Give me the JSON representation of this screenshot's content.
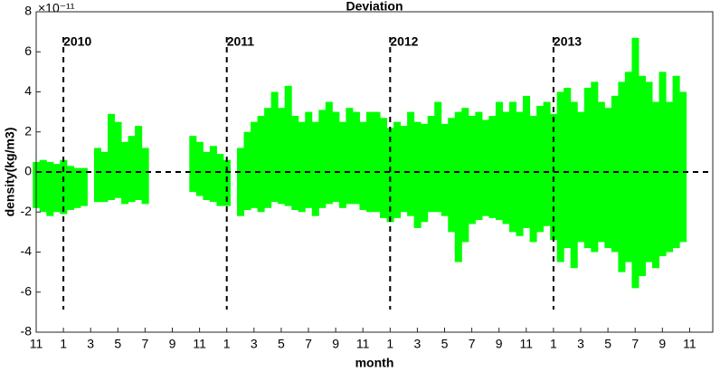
{
  "chart_data": {
    "type": "range",
    "title": "Deviation",
    "xlabel": "month",
    "ylabel": "density(kg/m3)",
    "y_multiplier": "×10⁻¹¹",
    "color": "#00ff00",
    "grid": false,
    "hline": 0,
    "xlim": [
      0,
      49.7
    ],
    "ylim": [
      -8,
      8
    ],
    "yticks": [
      -8,
      -6,
      -4,
      -2,
      0,
      2,
      4,
      6,
      8
    ],
    "xticks": [
      {
        "value": 0,
        "label": "11"
      },
      {
        "value": 2,
        "label": "1"
      },
      {
        "value": 4,
        "label": "3"
      },
      {
        "value": 6,
        "label": "5"
      },
      {
        "value": 8,
        "label": "7"
      },
      {
        "value": 10,
        "label": "9"
      },
      {
        "value": 12,
        "label": "11"
      },
      {
        "value": 14,
        "label": "1"
      },
      {
        "value": 16,
        "label": "3"
      },
      {
        "value": 18,
        "label": "5"
      },
      {
        "value": 20,
        "label": "7"
      },
      {
        "value": 22,
        "label": "9"
      },
      {
        "value": 24,
        "label": "11"
      },
      {
        "value": 26,
        "label": "1"
      },
      {
        "value": 28,
        "label": "3"
      },
      {
        "value": 30,
        "label": "5"
      },
      {
        "value": 32,
        "label": "7"
      },
      {
        "value": 34,
        "label": "9"
      },
      {
        "value": 36,
        "label": "11"
      },
      {
        "value": 38,
        "label": "1"
      },
      {
        "value": 40,
        "label": "3"
      },
      {
        "value": 42,
        "label": "5"
      },
      {
        "value": 44,
        "label": "7"
      },
      {
        "value": 46,
        "label": "9"
      },
      {
        "value": 48,
        "label": "11"
      }
    ],
    "annotations": [
      {
        "x": 2,
        "label": "2010"
      },
      {
        "x": 14,
        "label": "2011"
      },
      {
        "x": 26,
        "label": "2012"
      },
      {
        "x": 38,
        "label": "2013"
      }
    ],
    "x": [
      0,
      0.5,
      1,
      1.5,
      2,
      2.5,
      3,
      3.5,
      4,
      4.5,
      5,
      5.5,
      6,
      6.5,
      7,
      7.5,
      8,
      8.5,
      9,
      9.5,
      10,
      10.5,
      11,
      11.5,
      12,
      12.5,
      13,
      13.5,
      14,
      14.5,
      15,
      15.5,
      16,
      16.5,
      17,
      17.5,
      18,
      18.5,
      19,
      19.5,
      20,
      20.5,
      21,
      21.5,
      22,
      22.5,
      23,
      23.5,
      24,
      24.5,
      25,
      25.5,
      26,
      26.5,
      27,
      27.5,
      28,
      28.5,
      29,
      29.5,
      30,
      30.5,
      31,
      31.5,
      32,
      32.5,
      33,
      33.5,
      34,
      34.5,
      35,
      35.5,
      36,
      36.5,
      37,
      37.5,
      38,
      38.5,
      39,
      39.5,
      40,
      40.5,
      41,
      41.5,
      42,
      42.5,
      43,
      43.5,
      44,
      44.5,
      45,
      45.5,
      46,
      46.5,
      47,
      47.5
    ],
    "upper": [
      0.5,
      0.6,
      0.5,
      0.4,
      0.6,
      0.3,
      0.2,
      0.2,
      null,
      1.2,
      1.0,
      2.9,
      2.5,
      1.5,
      1.8,
      2.3,
      1.2,
      null,
      null,
      null,
      null,
      null,
      null,
      1.8,
      1.5,
      1.0,
      1.3,
      0.9,
      0.6,
      null,
      1.2,
      2.0,
      2.5,
      2.8,
      3.2,
      4.0,
      3.2,
      4.3,
      2.8,
      2.5,
      3.0,
      2.5,
      3.1,
      3.5,
      3.0,
      2.5,
      3.2,
      3.0,
      2.5,
      3.0,
      3.0,
      2.7,
      2.2,
      2.5,
      2.3,
      3.0,
      2.5,
      2.4,
      2.8,
      3.5,
      2.4,
      2.7,
      3.0,
      3.2,
      2.8,
      3.0,
      2.6,
      2.8,
      3.5,
      3.0,
      3.5,
      3.0,
      3.8,
      2.8,
      3.3,
      3.5,
      2.9,
      4.0,
      4.2,
      3.5,
      3.0,
      4.2,
      4.5,
      3.5,
      3.2,
      3.8,
      4.5,
      5.0,
      6.7,
      4.8,
      4.5,
      3.5,
      5.0,
      3.5,
      4.8,
      4.0
    ],
    "lower": [
      -1.8,
      -2.0,
      -2.2,
      -2.0,
      -2.1,
      -1.9,
      -1.8,
      -1.7,
      null,
      -1.5,
      -1.5,
      -1.4,
      -1.3,
      -1.6,
      -1.5,
      -1.4,
      -1.6,
      null,
      null,
      null,
      null,
      null,
      null,
      -1.0,
      -1.2,
      -1.4,
      -1.5,
      -1.7,
      -1.7,
      null,
      -2.2,
      -1.9,
      -1.8,
      -2.0,
      -1.8,
      -1.5,
      -1.6,
      -1.7,
      -1.9,
      -2.0,
      -1.8,
      -2.2,
      -1.8,
      -1.6,
      -1.5,
      -1.8,
      -1.6,
      -1.6,
      -1.9,
      -2.0,
      -2.0,
      -2.3,
      -2.5,
      -2.3,
      -2.0,
      -2.2,
      -2.8,
      -2.5,
      -2.0,
      -2.0,
      -2.2,
      -3.0,
      -4.5,
      -3.5,
      -2.6,
      -2.4,
      -2.2,
      -2.3,
      -2.4,
      -2.6,
      -3.0,
      -3.2,
      -2.8,
      -3.5,
      -3.0,
      -2.7,
      -3.4,
      -4.5,
      -3.8,
      -4.8,
      -3.5,
      -3.8,
      -4.0,
      -3.5,
      -3.8,
      -4.0,
      -5.0,
      -4.5,
      -5.8,
      -5.2,
      -4.5,
      -4.8,
      -4.2,
      -4.0,
      -3.8,
      -3.5
    ]
  }
}
